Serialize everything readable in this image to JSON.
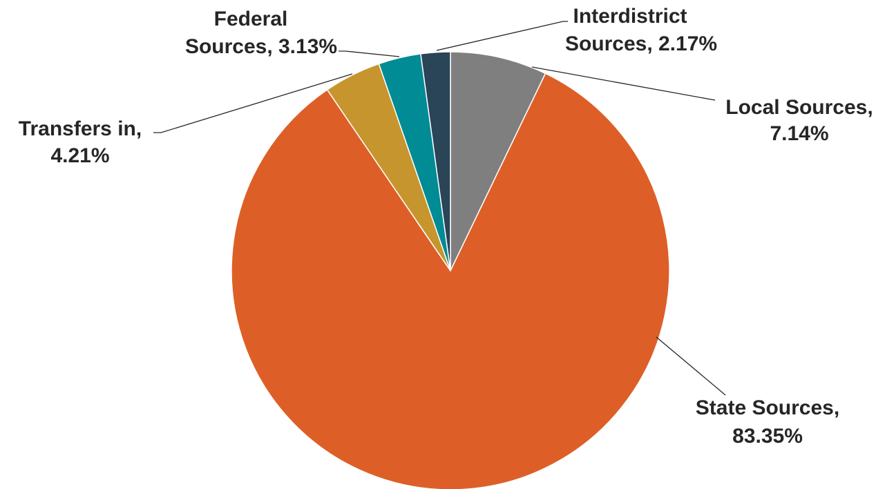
{
  "chart_data": {
    "type": "pie",
    "title": "",
    "slices": [
      {
        "name": "Local Sources",
        "value": 7.14,
        "label_line1": "Local Sources,",
        "label_line2": "7.14%",
        "color": "#7f7f7f"
      },
      {
        "name": "State Sources",
        "value": 83.35,
        "label_line1": "State Sources,",
        "label_line2": "83.35%",
        "color": "#dd5f27"
      },
      {
        "name": "Transfers in",
        "value": 4.21,
        "label_line1": "Transfers in,",
        "label_line2": "4.21%",
        "color": "#c7952d"
      },
      {
        "name": "Federal Sources",
        "value": 3.13,
        "label_line1": "Federal",
        "label_line2": "Sources, 3.13%",
        "color": "#008b95"
      },
      {
        "name": "Interdistrict Sources",
        "value": 2.17,
        "label_line1": "Interdistrict",
        "label_line2": "Sources, 2.17%",
        "color": "#2a4458"
      }
    ]
  }
}
